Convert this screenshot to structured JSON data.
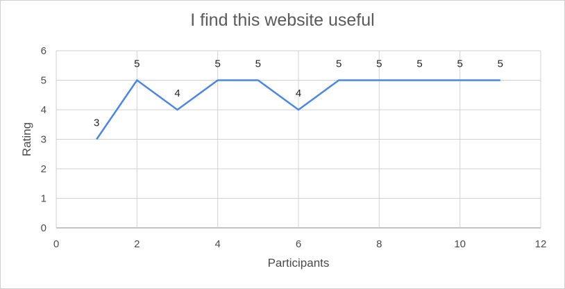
{
  "chart_data": {
    "type": "line",
    "title": "I find this website useful",
    "xlabel": "Participants",
    "ylabel": "Rating",
    "xlim": [
      0,
      12
    ],
    "ylim": [
      0,
      6
    ],
    "x_ticks": [
      0,
      2,
      4,
      6,
      8,
      10,
      12
    ],
    "y_ticks": [
      0,
      1,
      2,
      3,
      4,
      5,
      6
    ],
    "grid": true,
    "legend": "none",
    "series": [
      {
        "color": "#4a86e8",
        "x": [
          1,
          2,
          3,
          4,
          5,
          6,
          7,
          8,
          9,
          10,
          11
        ],
        "values": [
          3,
          5,
          4,
          5,
          5,
          4,
          5,
          5,
          5,
          5,
          5
        ],
        "data_labels": [
          "3",
          "5",
          "4",
          "5",
          "5",
          "4",
          "5",
          "5",
          "5",
          "5",
          "5"
        ]
      }
    ]
  }
}
